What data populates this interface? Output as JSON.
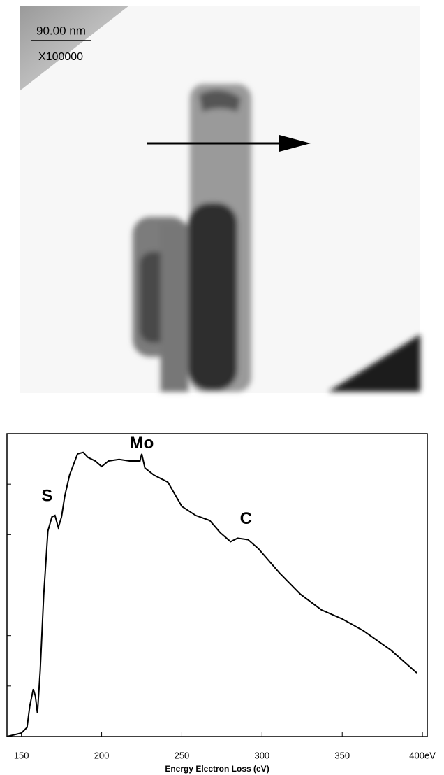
{
  "image": {
    "scale_label": "90.00 nm",
    "magnification": "X100000"
  },
  "chart_data": {
    "type": "line",
    "xlabel": "Energy Electron Loss (eV)",
    "x": [
      141,
      150,
      153.5,
      155.2,
      157.4,
      158.7,
      160,
      161.7,
      163.9,
      166.5,
      169,
      170.9,
      173,
      175,
      177,
      180,
      185,
      188.5,
      191.5,
      196,
      200,
      204.3,
      210.9,
      217.4,
      223.9,
      225,
      227,
      232.6,
      241.3,
      250,
      258.7,
      267.4,
      273.9,
      280.4,
      284.8,
      291.3,
      297.8,
      310.9,
      323.9,
      337,
      350,
      363,
      380.4,
      396.5
    ],
    "series": [
      {
        "color": "#000000",
        "values": [
          0.0,
          0.07,
          0.18,
          0.6,
          0.94,
          0.8,
          0.46,
          1.3,
          2.8,
          4.07,
          4.35,
          4.38,
          4.14,
          4.35,
          4.76,
          5.18,
          5.6,
          5.63,
          5.53,
          5.46,
          5.35,
          5.46,
          5.49,
          5.46,
          5.46,
          5.6,
          5.32,
          5.18,
          5.04,
          4.56,
          4.38,
          4.28,
          4.04,
          3.86,
          3.93,
          3.9,
          3.72,
          3.24,
          2.82,
          2.51,
          2.33,
          2.1,
          1.71,
          1.26
        ]
      }
    ],
    "xlim": [
      141,
      403
    ],
    "xticks": [
      150,
      200,
      250,
      300,
      350,
      {
        "value": 400,
        "label": "400eV"
      }
    ],
    "ylim": [
      0,
      6
    ],
    "yticks": [
      1,
      2,
      3,
      4,
      5
    ],
    "annotations": [
      {
        "text": "S",
        "x": 166,
        "y": 4.75
      },
      {
        "text": "Mo",
        "x": 225,
        "y": 5.8
      },
      {
        "text": "C",
        "x": 290,
        "y": 4.3
      }
    ]
  }
}
